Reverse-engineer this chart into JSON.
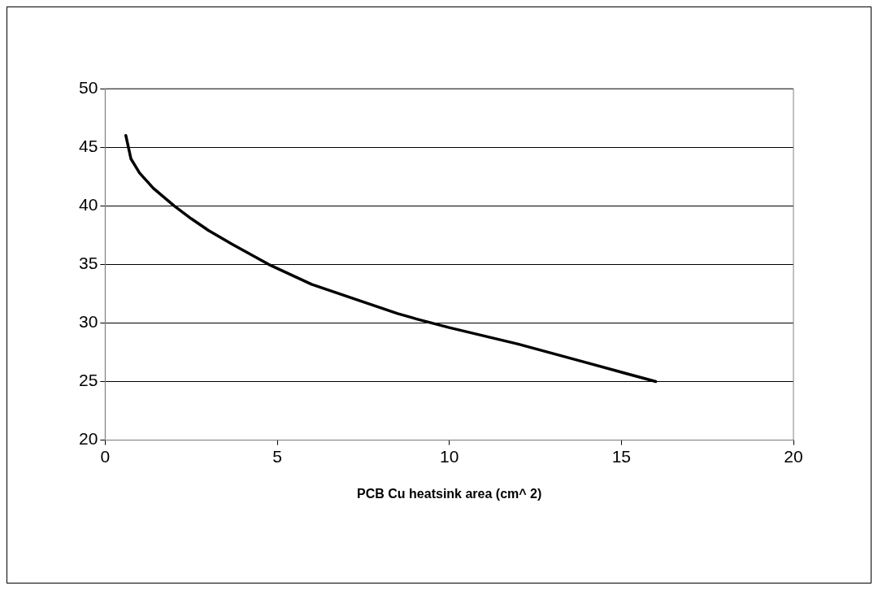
{
  "chart_data": {
    "type": "line",
    "xlabel": "PCB Cu heatsink area (cm^ 2)",
    "x": [
      0.6,
      0.75,
      1.0,
      1.4,
      2,
      2.5,
      3,
      3.7,
      4.75,
      6,
      7.3,
      8.5,
      9.1,
      10,
      12,
      14,
      16
    ],
    "series": [
      {
        "color": "#000000",
        "values": [
          46,
          44,
          42.8,
          41.5,
          40,
          38.9,
          37.9,
          36.7,
          35,
          33.3,
          32,
          30.8,
          30.3,
          29.6,
          28.2,
          26.6,
          25
        ]
      }
    ],
    "xlim": [
      0,
      20
    ],
    "xticks": [
      0,
      5,
      10,
      15,
      20
    ],
    "ylim": [
      20,
      50
    ],
    "yticks": [
      20,
      25,
      30,
      35,
      40,
      45,
      50
    ],
    "grid": "y",
    "legend": false,
    "marker": "none",
    "line_style": "solid"
  }
}
